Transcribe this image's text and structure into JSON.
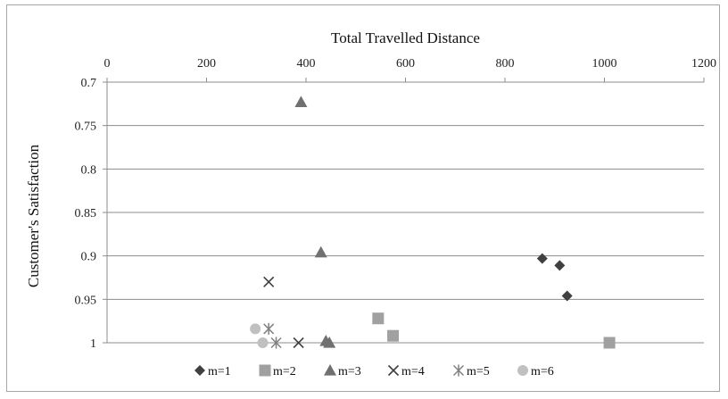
{
  "chart_data": {
    "type": "scatter",
    "xlabel": "Total Travelled Distance",
    "ylabel": "Customer's Satisfaction",
    "xlim": [
      0,
      1200
    ],
    "ylim": [
      0.7,
      1.0
    ],
    "y_reversed": true,
    "x_axis_position": "top",
    "x_ticks": [
      "0",
      "200",
      "400",
      "600",
      "800",
      "1000",
      "1200"
    ],
    "y_ticks": [
      "0.7",
      "0.75",
      "0.8",
      "0.85",
      "0.9",
      "0.95",
      "1"
    ],
    "grid": "horizontal",
    "legend_position": "bottom",
    "series": [
      {
        "name": "m=1",
        "marker": "diamond",
        "color": "#404040",
        "points": [
          [
            875,
            0.903
          ],
          [
            910,
            0.911
          ],
          [
            925,
            0.946
          ]
        ]
      },
      {
        "name": "m=2",
        "marker": "square",
        "color": "#a0a0a0",
        "points": [
          [
            545,
            0.972
          ],
          [
            575,
            0.992
          ],
          [
            1010,
            1.0
          ]
        ]
      },
      {
        "name": "m=3",
        "marker": "triangle",
        "color": "#707070",
        "points": [
          [
            390,
            0.723
          ],
          [
            430,
            0.896
          ],
          [
            440,
            0.998
          ],
          [
            447,
            1.0
          ]
        ]
      },
      {
        "name": "m=4",
        "marker": "x",
        "color": "#404040",
        "points": [
          [
            325,
            0.93
          ],
          [
            385,
            1.0
          ]
        ]
      },
      {
        "name": "m=5",
        "marker": "asterisk",
        "color": "#808080",
        "points": [
          [
            325,
            0.984
          ],
          [
            340,
            1.0
          ]
        ]
      },
      {
        "name": "m=6",
        "marker": "circle",
        "color": "#c0c0c0",
        "points": [
          [
            298,
            0.984
          ],
          [
            313,
            1.0
          ]
        ]
      }
    ]
  }
}
